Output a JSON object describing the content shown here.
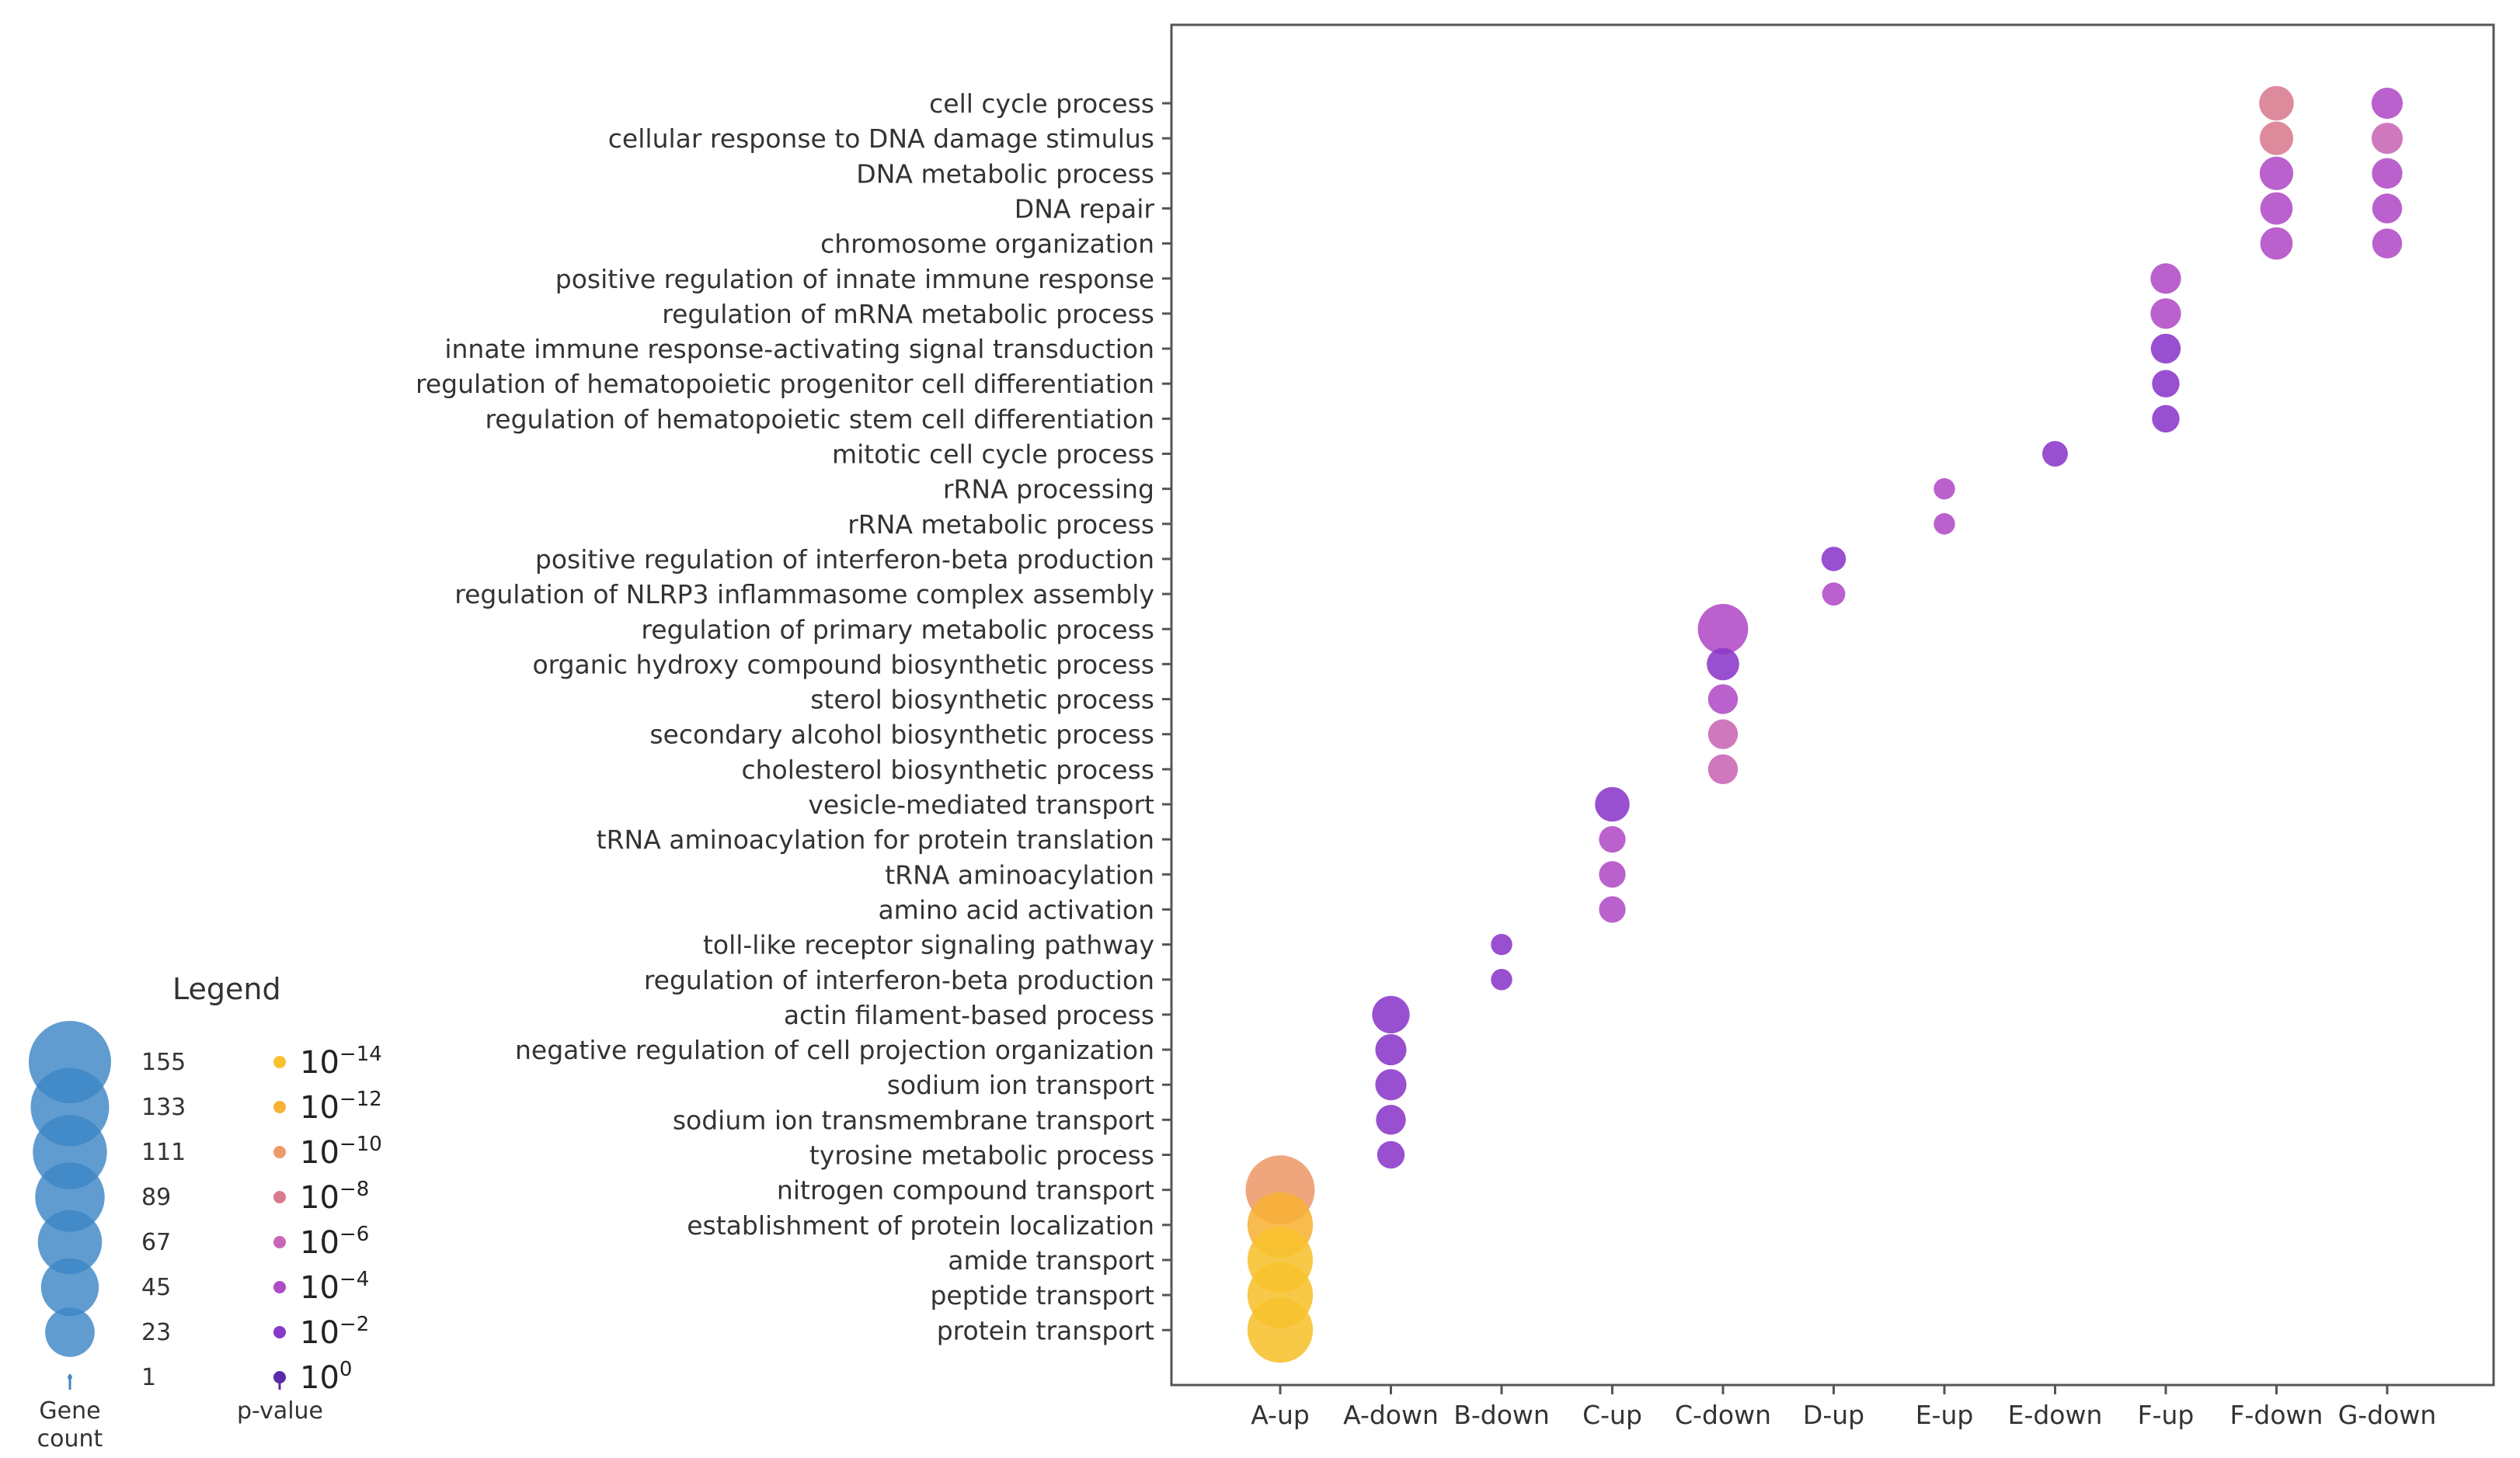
{
  "chart_data": {
    "type": "scatter",
    "title": "",
    "xlabel": "",
    "ylabel": "",
    "categories": [
      "A-up",
      "A-down",
      "B-down",
      "C-up",
      "C-down",
      "D-up",
      "E-up",
      "E-down",
      "F-up",
      "F-down",
      "G-down"
    ],
    "terms": [
      "cell cycle process",
      "cellular response to DNA damage stimulus",
      "DNA metabolic process",
      "DNA repair",
      "chromosome organization",
      "positive regulation of innate immune response",
      "regulation of mRNA metabolic process",
      "innate immune response-activating signal transduction",
      "regulation of hematopoietic progenitor cell differentiation",
      "regulation of hematopoietic stem cell differentiation",
      "mitotic cell cycle process",
      "rRNA processing",
      "rRNA metabolic process",
      "positive regulation of interferon-beta production",
      "regulation of NLRP3 inflammasome complex assembly",
      "regulation of primary metabolic process",
      "organic hydroxy compound biosynthetic process",
      "sterol biosynthetic process",
      "secondary alcohol biosynthetic process",
      "cholesterol biosynthetic process",
      "vesicle-mediated transport",
      "tRNA aminoacylation for protein translation",
      "tRNA aminoacylation",
      "amino acid activation",
      "toll-like receptor signaling pathway",
      "regulation of interferon-beta production",
      "actin filament-based process",
      "negative regulation of cell projection organization",
      "sodium ion transport",
      "sodium ion transmembrane transport",
      "tyrosine metabolic process",
      "nitrogen compound transport",
      "establishment of protein localization",
      "amide transport",
      "peptide transport",
      "protein transport"
    ],
    "points": [
      {
        "term": "cell cycle process",
        "category": "F-down",
        "count": 18,
        "log10p": -7
      },
      {
        "term": "cellular response to DNA damage stimulus",
        "category": "F-down",
        "count": 16,
        "log10p": -7
      },
      {
        "term": "DNA metabolic process",
        "category": "F-down",
        "count": 16,
        "log10p": -4
      },
      {
        "term": "DNA repair",
        "category": "F-down",
        "count": 14,
        "log10p": -4
      },
      {
        "term": "chromosome organization",
        "category": "F-down",
        "count": 14,
        "log10p": -4
      },
      {
        "term": "cell cycle process",
        "category": "G-down",
        "count": 12,
        "log10p": -4
      },
      {
        "term": "cellular response to DNA damage stimulus",
        "category": "G-down",
        "count": 12,
        "log10p": -6
      },
      {
        "term": "DNA metabolic process",
        "category": "G-down",
        "count": 11,
        "log10p": -4
      },
      {
        "term": "DNA repair",
        "category": "G-down",
        "count": 10,
        "log10p": -4
      },
      {
        "term": "chromosome organization",
        "category": "G-down",
        "count": 10,
        "log10p": -4
      },
      {
        "term": "positive regulation of innate immune response",
        "category": "F-up",
        "count": 11,
        "log10p": -4
      },
      {
        "term": "regulation of mRNA metabolic process",
        "category": "F-up",
        "count": 11,
        "log10p": -4
      },
      {
        "term": "innate immune response-activating signal transduction",
        "category": "F-up",
        "count": 10,
        "log10p": -2
      },
      {
        "term": "regulation of hematopoietic progenitor cell differentiation",
        "category": "F-up",
        "count": 7,
        "log10p": -2
      },
      {
        "term": "regulation of hematopoietic stem cell differentiation",
        "category": "F-up",
        "count": 7,
        "log10p": -2
      },
      {
        "term": "mitotic cell cycle process",
        "category": "E-down",
        "count": 5,
        "log10p": -2
      },
      {
        "term": "rRNA processing",
        "category": "E-up",
        "count": 2,
        "log10p": -3
      },
      {
        "term": "rRNA metabolic process",
        "category": "E-up",
        "count": 2,
        "log10p": -3
      },
      {
        "term": "positive regulation of interferon-beta production",
        "category": "D-up",
        "count": 4,
        "log10p": -2
      },
      {
        "term": "regulation of NLRP3 inflammasome complex assembly",
        "category": "D-up",
        "count": 3,
        "log10p": -3
      },
      {
        "term": "regulation of primary metabolic process",
        "category": "C-down",
        "count": 62,
        "log10p": -4
      },
      {
        "term": "organic hydroxy compound biosynthetic process",
        "category": "C-down",
        "count": 14,
        "log10p": -2
      },
      {
        "term": "sterol biosynthetic process",
        "category": "C-down",
        "count": 10,
        "log10p": -4
      },
      {
        "term": "secondary alcohol biosynthetic process",
        "category": "C-down",
        "count": 10,
        "log10p": -6
      },
      {
        "term": "cholesterol biosynthetic process",
        "category": "C-down",
        "count": 10,
        "log10p": -6
      },
      {
        "term": "vesicle-mediated transport",
        "category": "C-up",
        "count": 18,
        "log10p": -2
      },
      {
        "term": "tRNA aminoacylation for protein translation",
        "category": "C-up",
        "count": 6,
        "log10p": -4
      },
      {
        "term": "tRNA aminoacylation",
        "category": "C-up",
        "count": 6,
        "log10p": -4
      },
      {
        "term": "amino acid activation",
        "category": "C-up",
        "count": 6,
        "log10p": -4
      },
      {
        "term": "toll-like receptor signaling pathway",
        "category": "B-down",
        "count": 2,
        "log10p": -1
      },
      {
        "term": "regulation of interferon-beta production",
        "category": "B-down",
        "count": 2,
        "log10p": -1
      },
      {
        "term": "actin filament-based process",
        "category": "A-down",
        "count": 24,
        "log10p": -2
      },
      {
        "term": "negative regulation of cell projection organization",
        "category": "A-down",
        "count": 12,
        "log10p": -2
      },
      {
        "term": "sodium ion transport",
        "category": "A-down",
        "count": 12,
        "log10p": -2
      },
      {
        "term": "sodium ion transmembrane transport",
        "category": "A-down",
        "count": 10,
        "log10p": -2
      },
      {
        "term": "tyrosine metabolic process",
        "category": "A-down",
        "count": 7,
        "log10p": -2
      },
      {
        "term": "nitrogen compound transport",
        "category": "A-up",
        "count": 150,
        "log10p": -10
      },
      {
        "term": "establishment of protein localization",
        "category": "A-up",
        "count": 130,
        "log10p": -12
      },
      {
        "term": "amide transport",
        "category": "A-up",
        "count": 130,
        "log10p": -13
      },
      {
        "term": "peptide transport",
        "category": "A-up",
        "count": 130,
        "log10p": -13
      },
      {
        "term": "protein transport",
        "category": "A-up",
        "count": 130,
        "log10p": -14
      }
    ],
    "legend": {
      "title": "Legend",
      "gene_count_values": [
        155,
        133,
        111,
        89,
        67,
        45,
        23,
        1
      ],
      "gene_count_label": [
        "Gene",
        "count"
      ],
      "pvalue_label": "p-value",
      "pvalue_exponents": [
        "-14",
        "-12",
        "-10",
        "-8",
        "-6",
        "-4",
        "-2",
        "0"
      ],
      "pvalue_base": "10",
      "pvalue_colors": [
        "#f7c22e",
        "#f7b236",
        "#ee9a6a",
        "#d97a90",
        "#c865b4",
        "#b04bc6",
        "#8a38c9",
        "#5b2aa8"
      ],
      "gene_count_color": "#3d86c6"
    }
  }
}
